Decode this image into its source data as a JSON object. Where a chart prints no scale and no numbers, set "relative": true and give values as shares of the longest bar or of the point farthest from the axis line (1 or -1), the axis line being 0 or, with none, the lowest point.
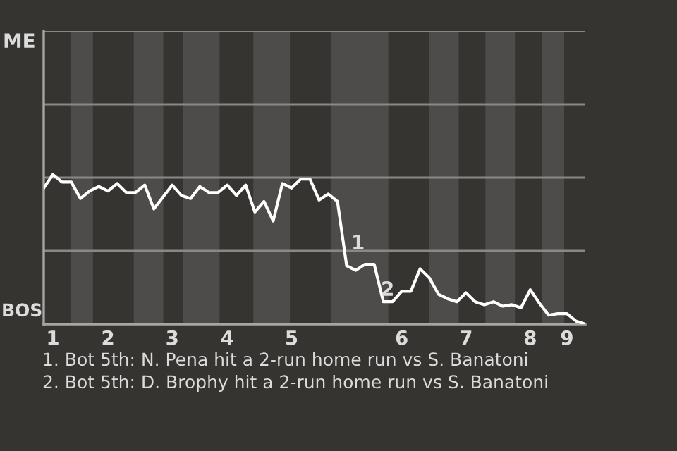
{
  "chart_data": {
    "type": "line",
    "relative": true,
    "categories": [
      null,
      "1",
      null,
      null,
      null,
      null,
      null,
      "2",
      null,
      null,
      null,
      null,
      null,
      null,
      "3",
      null,
      null,
      null,
      null,
      null,
      "4",
      null,
      null,
      null,
      null,
      null,
      null,
      "5",
      null,
      null,
      null,
      null,
      null,
      null,
      null,
      null,
      null,
      null,
      null,
      "6",
      null,
      null,
      null,
      null,
      null,
      null,
      "7",
      null,
      null,
      null,
      null,
      null,
      null,
      "8",
      null,
      null,
      null,
      "9",
      null,
      null
    ],
    "series": [
      {
        "color": "#ffffff",
        "values": [
          0.91,
          1,
          0.95,
          0.95,
          0.84,
          0.89,
          0.92,
          0.89,
          0.94,
          0.88,
          0.88,
          0.93,
          0.77,
          0.85,
          0.93,
          0.86,
          0.84,
          0.92,
          0.88,
          0.88,
          0.93,
          0.86,
          0.93,
          0.75,
          0.82,
          0.69,
          0.94,
          0.91,
          0.97,
          0.97,
          0.83,
          0.87,
          0.82,
          0.39,
          0.36,
          0.4,
          0.4,
          0.15,
          0.15,
          0.22,
          0.22,
          0.37,
          0.31,
          0.2,
          0.17,
          0.15,
          0.21,
          0.15,
          0.13,
          0.15,
          0.12,
          0.13,
          0.11,
          0.23,
          0.14,
          0.06,
          0.07,
          0.07,
          0.02,
          0
        ]
      }
    ],
    "marker": "none",
    "line_style": "solid",
    "ref_lines": [
      {
        "axis": "y",
        "value": 0.49,
        "color": "#8a8885"
      },
      {
        "axis": "y",
        "value": 0.98,
        "color": "#8a8885"
      },
      {
        "axis": "y",
        "value": 1.47,
        "color": "#8a8885"
      },
      {
        "axis": "y",
        "value": 1.96,
        "color": "#8a8885"
      }
    ],
    "annotations": [
      "ME",
      "BOS",
      "1",
      "2",
      "1. Bot 5th: N. Pena hit a 2-run home run vs S. Banatoni",
      "2. Bot 5th: D. Brophy hit a 2-run home run vs S. Banatoni"
    ]
  }
}
